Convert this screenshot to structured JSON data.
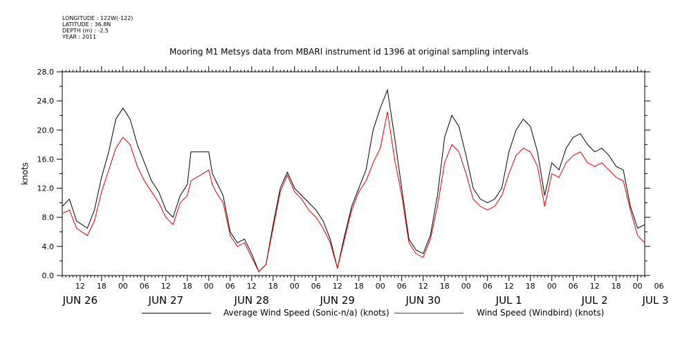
{
  "header": {
    "meta": [
      "LONGITUDE : 122W(-122)",
      "LATITUDE : 36.8N",
      "DEPTH (m) : -2.5",
      "YEAR : 2011"
    ],
    "title": "Mooring M1 Metsys data from MBARI instrument id 1396 at original sampling intervals"
  },
  "colors": {
    "sonic": "#000000",
    "windbird": "#e00000"
  },
  "chart_data": {
    "type": "line",
    "title": "Mooring M1 Metsys data from MBARI instrument id 1396 at original sampling intervals",
    "ylabel": "knots",
    "ylim": [
      0,
      28
    ],
    "yticks": [
      "0.0",
      "4.0",
      "8.0",
      "12.0",
      "16.0",
      "20.0",
      "24.0",
      "28.0"
    ],
    "x_unit": "hours since JUN 26 00:00",
    "xlim": [
      7,
      170
    ],
    "hour_ticks": [
      {
        "x": 12,
        "label": "12"
      },
      {
        "x": 18,
        "label": "18"
      },
      {
        "x": 24,
        "label": "00"
      },
      {
        "x": 30,
        "label": "06"
      },
      {
        "x": 36,
        "label": "12"
      },
      {
        "x": 42,
        "label": "18"
      },
      {
        "x": 48,
        "label": "00"
      },
      {
        "x": 54,
        "label": "06"
      },
      {
        "x": 60,
        "label": "12"
      },
      {
        "x": 66,
        "label": "18"
      },
      {
        "x": 72,
        "label": "00"
      },
      {
        "x": 78,
        "label": "06"
      },
      {
        "x": 84,
        "label": "12"
      },
      {
        "x": 90,
        "label": "18"
      },
      {
        "x": 96,
        "label": "00"
      },
      {
        "x": 102,
        "label": "06"
      },
      {
        "x": 108,
        "label": "12"
      },
      {
        "x": 114,
        "label": "18"
      },
      {
        "x": 120,
        "label": "00"
      },
      {
        "x": 126,
        "label": "06"
      },
      {
        "x": 132,
        "label": "12"
      },
      {
        "x": 138,
        "label": "18"
      },
      {
        "x": 144,
        "label": "00"
      },
      {
        "x": 150,
        "label": "06"
      },
      {
        "x": 156,
        "label": "12"
      },
      {
        "x": 162,
        "label": "18"
      },
      {
        "x": 168,
        "label": "00"
      },
      {
        "x": 174,
        "label": "06"
      }
    ],
    "day_labels": [
      {
        "x": 12,
        "label": "JUN 26"
      },
      {
        "x": 36,
        "label": "JUN 27"
      },
      {
        "x": 60,
        "label": "JUN 28"
      },
      {
        "x": 84,
        "label": "JUN 29"
      },
      {
        "x": 108,
        "label": "JUN 30"
      },
      {
        "x": 132,
        "label": "JUL  1"
      },
      {
        "x": 156,
        "label": "JUL  2"
      },
      {
        "x": 173,
        "label": "JUL  3"
      }
    ],
    "series": [
      {
        "name": "Average Wind Speed (Sonic-n/a) (knots)",
        "color": "#000000",
        "x": [
          7,
          9,
          11,
          14,
          16,
          18,
          20,
          22,
          24,
          26,
          28,
          30,
          32,
          34,
          36,
          38,
          40,
          42,
          43,
          48,
          49,
          50,
          52,
          54,
          56,
          58,
          60,
          62,
          64,
          66,
          68,
          70,
          72,
          74,
          76,
          78,
          80,
          82,
          84,
          86,
          88,
          90,
          92,
          94,
          96,
          98,
          100,
          102,
          104,
          106,
          108,
          110,
          112,
          114,
          116,
          118,
          120,
          122,
          124,
          126,
          128,
          130,
          132,
          134,
          136,
          138,
          140,
          142,
          144,
          146,
          148,
          150,
          152,
          154,
          156,
          158,
          160,
          162,
          164,
          166,
          168,
          170
        ],
        "values": [
          9.5,
          10.5,
          7.5,
          6.5,
          9.0,
          13.5,
          17.0,
          21.5,
          23.0,
          21.5,
          18.0,
          15.5,
          13.0,
          11.5,
          9.0,
          8.0,
          11.0,
          12.5,
          17.0,
          17.0,
          14.0,
          13.0,
          11.0,
          6.0,
          4.5,
          5.0,
          3.0,
          0.5,
          1.5,
          7.0,
          12.0,
          14.2,
          12.0,
          11.0,
          10.0,
          9.0,
          7.5,
          5.0,
          1.0,
          5.5,
          9.5,
          12.0,
          14.5,
          20.0,
          23.0,
          25.5,
          19.0,
          12.0,
          5.0,
          3.5,
          3.0,
          5.5,
          11.0,
          19.0,
          22.0,
          20.5,
          16.5,
          12.0,
          10.5,
          10.0,
          10.5,
          12.0,
          17.0,
          20.0,
          21.5,
          20.5,
          17.0,
          11.0,
          15.5,
          14.5,
          17.5,
          19.0,
          19.5,
          18.0,
          17.0,
          17.5,
          16.5,
          15.0,
          14.5,
          9.5,
          6.5,
          7.0
        ]
      },
      {
        "name": "Wind Speed (Windbird) (knots)",
        "color": "#e00000",
        "x": [
          7,
          9,
          11,
          14,
          16,
          18,
          20,
          22,
          24,
          26,
          28,
          30,
          32,
          34,
          36,
          38,
          40,
          42,
          43,
          48,
          49,
          50,
          52,
          54,
          56,
          58,
          60,
          62,
          64,
          66,
          68,
          70,
          72,
          74,
          76,
          78,
          80,
          82,
          84,
          86,
          88,
          90,
          92,
          94,
          96,
          98,
          100,
          102,
          104,
          106,
          108,
          110,
          112,
          114,
          116,
          118,
          120,
          122,
          124,
          126,
          128,
          130,
          132,
          134,
          136,
          138,
          140,
          142,
          144,
          146,
          148,
          150,
          152,
          154,
          156,
          158,
          160,
          162,
          164,
          166,
          168,
          170
        ],
        "values": [
          8.5,
          9.0,
          6.5,
          5.5,
          7.5,
          11.5,
          14.5,
          17.5,
          19.0,
          18.0,
          15.0,
          13.0,
          11.5,
          10.0,
          8.0,
          7.0,
          10.0,
          11.0,
          13.0,
          14.5,
          12.5,
          11.5,
          10.0,
          5.5,
          4.0,
          4.5,
          2.5,
          0.5,
          1.5,
          6.5,
          11.5,
          13.8,
          11.5,
          10.5,
          9.0,
          8.0,
          6.5,
          4.5,
          1.0,
          5.0,
          9.0,
          11.5,
          13.0,
          15.5,
          17.5,
          22.5,
          16.0,
          11.0,
          4.5,
          3.0,
          2.5,
          5.0,
          9.5,
          15.5,
          18.0,
          17.0,
          14.0,
          10.5,
          9.5,
          9.0,
          9.5,
          11.0,
          14.0,
          16.5,
          17.5,
          17.0,
          15.0,
          9.5,
          14.0,
          13.5,
          15.5,
          16.5,
          17.0,
          15.5,
          15.0,
          15.5,
          14.5,
          13.5,
          13.0,
          9.0,
          5.5,
          4.5
        ]
      }
    ]
  },
  "legend": [
    {
      "label": "Average Wind Speed (Sonic-n/a) (knots)",
      "color": "#000000"
    },
    {
      "label": "Wind Speed (Windbird) (knots)",
      "color": "#e00000"
    }
  ]
}
